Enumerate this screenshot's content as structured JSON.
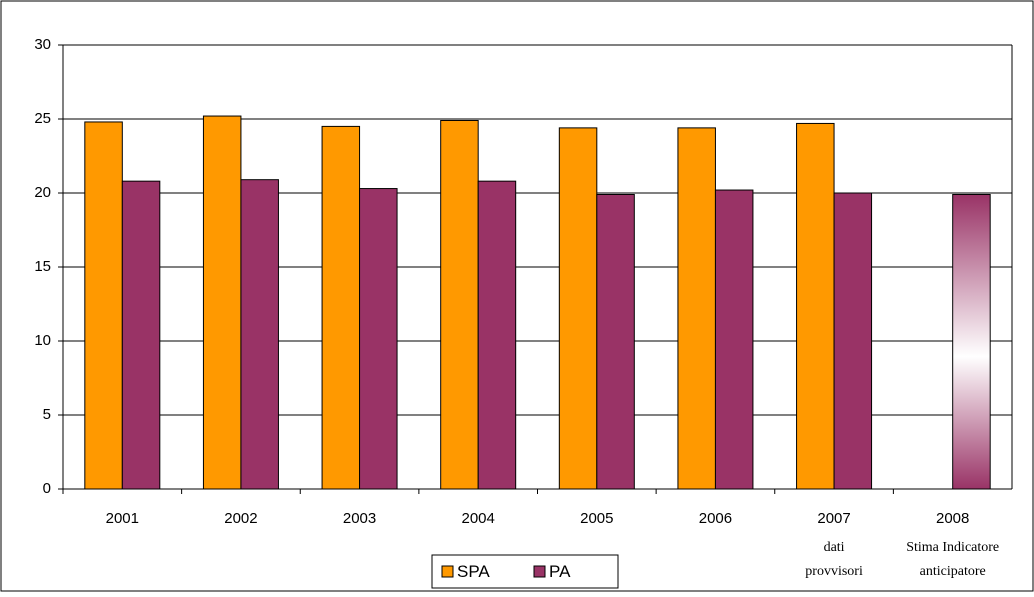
{
  "chart_data": {
    "type": "bar",
    "categories": [
      "2001",
      "2002",
      "2003",
      "2004",
      "2005",
      "2006",
      "2007",
      "2008"
    ],
    "series": [
      {
        "name": "SPA",
        "color": "#ff9900",
        "values": [
          24.8,
          25.2,
          24.5,
          24.9,
          24.4,
          24.4,
          24.7,
          null
        ]
      },
      {
        "name": "PA",
        "color": "#993366",
        "values": [
          20.8,
          20.9,
          20.3,
          20.8,
          19.9,
          20.2,
          20.0,
          19.9
        ]
      }
    ],
    "ylim": [
      0,
      30
    ],
    "yticks": [
      0,
      5,
      10,
      15,
      20,
      25,
      30
    ],
    "grid": true,
    "legend": "bottom",
    "annotations": [
      {
        "x": "2007",
        "lines": [
          "dati",
          "provvisori"
        ]
      },
      {
        "x": "2008",
        "lines": [
          "Stima Indicatore",
          "anticipatore"
        ]
      }
    ]
  }
}
